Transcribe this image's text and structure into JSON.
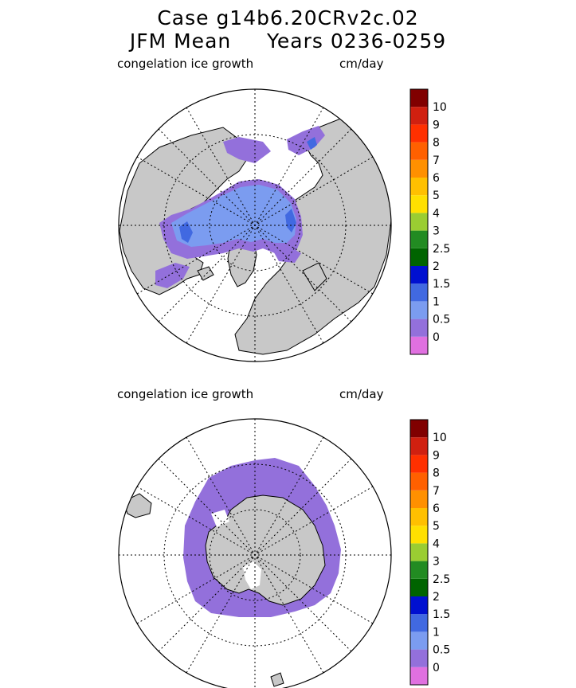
{
  "title": {
    "line1": "Case g14b6.20CRv2c.02",
    "line2": "JFM Mean     Years 0236-0259"
  },
  "panels": [
    {
      "variable": "congelation ice growth",
      "units": "cm/day",
      "hemisphere": "north"
    },
    {
      "variable": "congelation ice growth",
      "units": "cm/day",
      "hemisphere": "south"
    }
  ],
  "chart_data": [
    {
      "type": "heatmap",
      "projection": "polar stereographic (north)",
      "title": "congelation ice growth",
      "units": "cm/day",
      "colorbar_levels": [
        "0",
        "0.5",
        "1",
        "1.5",
        "2",
        "2.5",
        "3",
        "4",
        "5",
        "6",
        "7",
        "8",
        "9",
        "10"
      ],
      "colorbar_colors": [
        "#e070e0",
        "#9370db",
        "#7b9cf0",
        "#4169e1",
        "#0010d0",
        "#006400",
        "#228b22",
        "#9acd32",
        "#ffe000",
        "#ffc000",
        "#ff9000",
        "#ff6000",
        "#ff3000",
        "#d02010",
        "#800000"
      ],
      "dominant_values": "0.5-1 over central Arctic, 0-0.5 at ice edges, 1.5-2 along coasts"
    },
    {
      "type": "heatmap",
      "projection": "polar stereographic (south)",
      "title": "congelation ice growth",
      "units": "cm/day",
      "colorbar_levels": [
        "0",
        "0.5",
        "1",
        "1.5",
        "2",
        "2.5",
        "3",
        "4",
        "5",
        "6",
        "7",
        "8",
        "9",
        "10"
      ],
      "colorbar_colors": [
        "#e070e0",
        "#9370db",
        "#7b9cf0",
        "#4169e1",
        "#0010d0",
        "#006400",
        "#228b22",
        "#9acd32",
        "#ffe000",
        "#ffc000",
        "#ff9000",
        "#ff6000",
        "#ff3000",
        "#d02010",
        "#800000"
      ],
      "dominant_values": "0-0.5 ring around Antarctica"
    }
  ],
  "colors": {
    "land": "#c8c8c8",
    "ice_main_n": "#7b9cf0",
    "ice_edge": "#9370db",
    "ice_coast": "#4169e1"
  }
}
